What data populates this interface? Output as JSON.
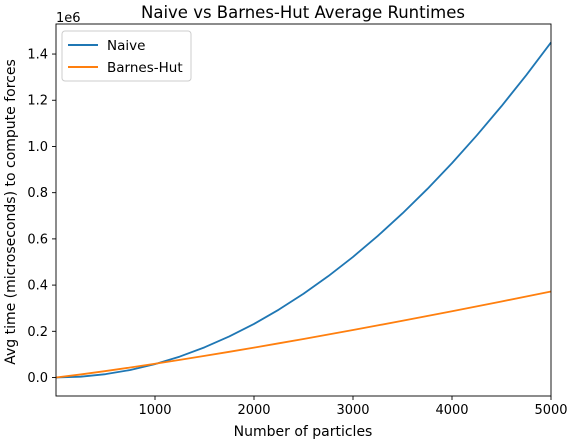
{
  "chart_data": {
    "type": "line",
    "title": "Naive vs Barnes-Hut Average Runtimes",
    "xlabel": "Number of particles",
    "ylabel": "Avg time (microseconds) to compute forces",
    "y_offset_label": "1e6",
    "xlim": [
      0,
      5000
    ],
    "ylim": [
      -0.08,
      1.53
    ],
    "x_ticks": [
      1000,
      2000,
      3000,
      4000,
      5000
    ],
    "x_tick_labels": [
      "1000",
      "2000",
      "3000",
      "4000",
      "5000"
    ],
    "y_ticks": [
      0.0,
      0.2,
      0.4,
      0.6,
      0.8,
      1.0,
      1.2,
      1.4
    ],
    "y_tick_labels": [
      "0.0",
      "0.2",
      "0.4",
      "0.6",
      "0.8",
      "1.0",
      "1.2",
      "1.4"
    ],
    "grid": false,
    "legend_position": "top-left",
    "x": [
      0,
      250,
      500,
      750,
      1000,
      1250,
      1500,
      1750,
      2000,
      2250,
      2500,
      2750,
      3000,
      3250,
      3500,
      3750,
      4000,
      4250,
      4500,
      4750,
      5000
    ],
    "series": [
      {
        "name": "Naive",
        "color": "#1f77b4",
        "values": [
          0.0,
          0.0036,
          0.0145,
          0.0326,
          0.058,
          0.0906,
          0.1305,
          0.1776,
          0.232,
          0.2936,
          0.3625,
          0.4386,
          0.522,
          0.6126,
          0.7105,
          0.8156,
          0.928,
          1.0476,
          1.1745,
          1.3086,
          1.45
        ]
      },
      {
        "name": "Barnes-Hut",
        "color": "#ff7f0e",
        "values": [
          0.0,
          0.0133,
          0.0279,
          0.0433,
          0.0594,
          0.0762,
          0.0935,
          0.1112,
          0.1294,
          0.148,
          0.1669,
          0.1861,
          0.2057,
          0.2256,
          0.2458,
          0.2662,
          0.2869,
          0.3079,
          0.3291,
          0.3505,
          0.3722
        ]
      }
    ]
  }
}
